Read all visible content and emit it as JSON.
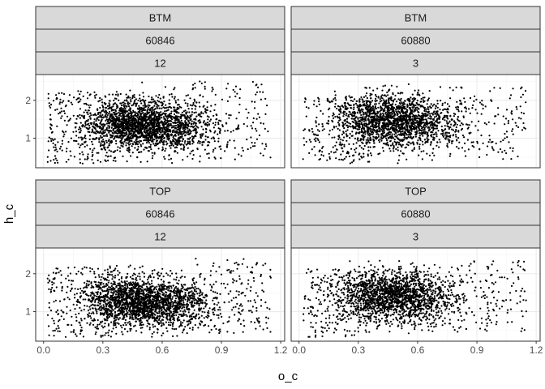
{
  "chart_data": {
    "type": "scatter",
    "facets": [
      {
        "row": 0,
        "col": 0,
        "strips": [
          "BTM",
          "60846",
          "12"
        ],
        "x_min": 0.02,
        "x_max": 1.15,
        "y_min": 0.33,
        "y_max": 2.6,
        "x_peak_a": 0.42,
        "x_peak_b": 0.62,
        "y_center": 1.4,
        "n_points": 2600,
        "seed": 11
      },
      {
        "row": 0,
        "col": 1,
        "strips": [
          "BTM",
          "60880",
          "3"
        ],
        "x_min": 0.02,
        "x_max": 1.15,
        "y_min": 0.33,
        "y_max": 2.45,
        "x_peak_a": 0.4,
        "x_peak_b": 0.58,
        "y_center": 1.5,
        "n_points": 2200,
        "seed": 23
      },
      {
        "row": 1,
        "col": 0,
        "strips": [
          "TOP",
          "60846",
          "12"
        ],
        "x_min": 0.02,
        "x_max": 1.15,
        "y_min": 0.33,
        "y_max": 2.5,
        "x_peak_a": 0.42,
        "x_peak_b": 0.62,
        "y_center": 1.3,
        "n_points": 2600,
        "seed": 37
      },
      {
        "row": 1,
        "col": 1,
        "strips": [
          "TOP",
          "60880",
          "3"
        ],
        "x_min": 0.02,
        "x_max": 1.15,
        "y_min": 0.33,
        "y_max": 2.45,
        "x_peak_a": 0.4,
        "x_peak_b": 0.58,
        "y_center": 1.45,
        "n_points": 2200,
        "seed": 53
      }
    ],
    "x_axis": {
      "label": "o_c",
      "ticks": [
        0.0,
        0.3,
        0.6,
        0.9,
        1.2
      ],
      "tick_labels": [
        "0.0",
        "0.3",
        "0.6",
        "0.9",
        "1.2"
      ],
      "range": [
        -0.04,
        1.22
      ]
    },
    "y_axis": {
      "label": "h_c",
      "ticks": [
        1,
        2
      ],
      "tick_labels": [
        "1",
        "2"
      ],
      "range": [
        0.22,
        2.68
      ]
    },
    "grid": true,
    "point_color": "#000000"
  }
}
